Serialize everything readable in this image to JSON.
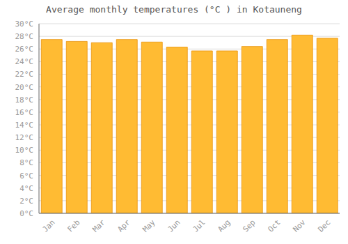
{
  "chart_data": {
    "type": "bar",
    "title": "Average monthly temperatures (°C ) in Kotauneng",
    "categories": [
      "Jan",
      "Feb",
      "Mar",
      "Apr",
      "May",
      "Jun",
      "Jul",
      "Aug",
      "Sep",
      "Oct",
      "Nov",
      "Dec"
    ],
    "values": [
      27.5,
      27.2,
      27.0,
      27.5,
      27.1,
      26.3,
      25.7,
      25.7,
      26.4,
      27.5,
      28.2,
      27.7
    ],
    "color": "#FFBB33",
    "ylim": [
      0,
      30
    ],
    "yticks": [
      {
        "value": 0,
        "label": "0°C"
      },
      {
        "value": 2,
        "label": "2°C"
      },
      {
        "value": 4,
        "label": "4°C"
      },
      {
        "value": 6,
        "label": "6°C"
      },
      {
        "value": 8,
        "label": "8°C"
      },
      {
        "value": 10,
        "label": "10°C"
      },
      {
        "value": 12,
        "label": "12°C"
      },
      {
        "value": 14,
        "label": "14°C"
      },
      {
        "value": 16,
        "label": "16°C"
      },
      {
        "value": 18,
        "label": "18°C"
      },
      {
        "value": 20,
        "label": "20°C"
      },
      {
        "value": 22,
        "label": "22°C"
      },
      {
        "value": 24,
        "label": "24°C"
      },
      {
        "value": 26,
        "label": "26°C"
      },
      {
        "value": 28,
        "label": "28°C"
      },
      {
        "value": 30,
        "label": "30°C"
      }
    ],
    "grid": true
  }
}
